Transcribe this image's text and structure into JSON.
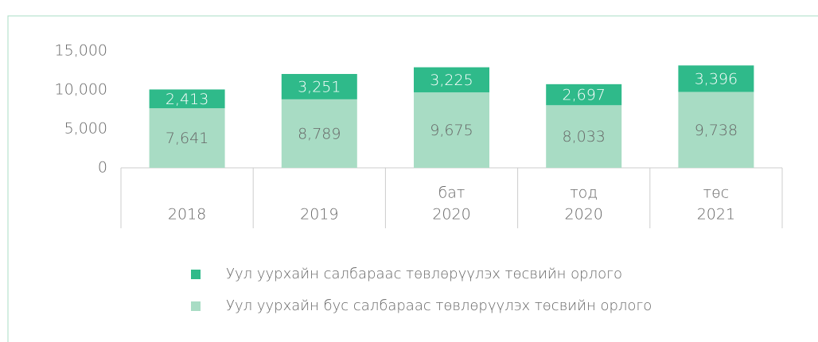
{
  "chart_data": {
    "type": "stacked_bar",
    "categories": [
      [
        "2018"
      ],
      [
        "2019"
      ],
      [
        "бат",
        "2020"
      ],
      [
        "тод",
        "2020"
      ],
      [
        "төс",
        "2021"
      ]
    ],
    "series": [
      {
        "name": "Уул уурхайн бус салбараас төвлөрүүлэх төсвийн орлого",
        "color": "#a8dcc4",
        "label_color": "#666666",
        "values": [
          7641,
          8789,
          9675,
          8033,
          9738
        ],
        "value_labels": [
          "7,641",
          "8,789",
          "9,675",
          "8,033",
          "9,738"
        ]
      },
      {
        "name": "Уул уурхайн салбараас төвлөрүүлэх төсвийн орлого",
        "color": "#2fba8a",
        "label_color": "#ffffff",
        "values": [
          2413,
          3251,
          3225,
          2697,
          3396
        ],
        "value_labels": [
          "2,413",
          "3,251",
          "3,225",
          "2,697",
          "3,396"
        ]
      }
    ],
    "ylim": [
      0,
      15000
    ],
    "yticks": [
      0,
      {
        "value": 5000,
        "label": "5,000"
      },
      {
        "value": 10000,
        "label": "10,000"
      },
      {
        "value": 15000,
        "label": "15,000"
      }
    ]
  }
}
